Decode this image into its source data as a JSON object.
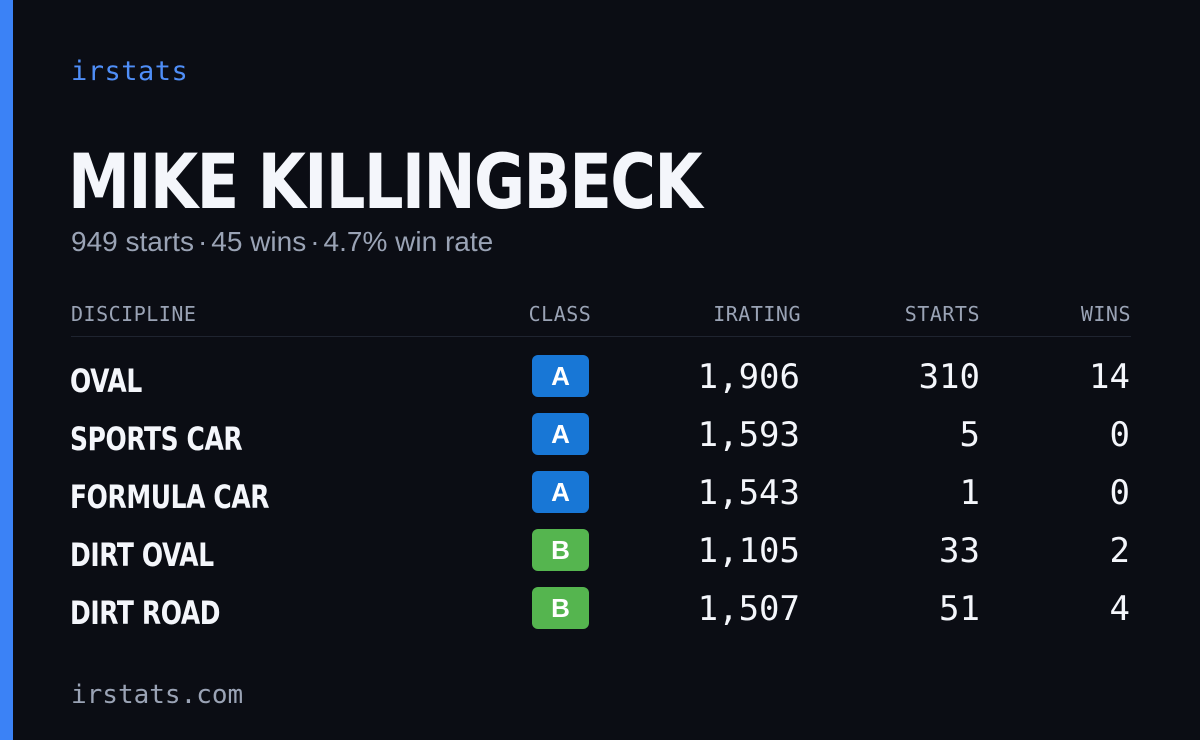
{
  "brand": "irstats",
  "driver": {
    "name": "MIKE KILLINGBECK",
    "starts_text": "949 starts",
    "wins_text": "45 wins",
    "win_rate_text": "4.7% win rate",
    "separator": "·"
  },
  "table": {
    "headers": {
      "discipline": "DISCIPLINE",
      "class": "CLASS",
      "irating": "IRATING",
      "starts": "STARTS",
      "wins": "WINS"
    },
    "rows": [
      {
        "discipline": "OVAL",
        "class": "A",
        "class_color": "#1877d6",
        "irating": "1,906",
        "starts": "310",
        "wins": "14"
      },
      {
        "discipline": "SPORTS CAR",
        "class": "A",
        "class_color": "#1877d6",
        "irating": "1,593",
        "starts": "5",
        "wins": "0"
      },
      {
        "discipline": "FORMULA CAR",
        "class": "A",
        "class_color": "#1877d6",
        "irating": "1,543",
        "starts": "1",
        "wins": "0"
      },
      {
        "discipline": "DIRT OVAL",
        "class": "B",
        "class_color": "#55b54f",
        "irating": "1,105",
        "starts": "33",
        "wins": "2"
      },
      {
        "discipline": "DIRT ROAD",
        "class": "B",
        "class_color": "#55b54f",
        "irating": "1,507",
        "starts": "51",
        "wins": "4"
      }
    ]
  },
  "footer": "irstats.com",
  "colors": {
    "accent": "#3b82f6",
    "background": "#0b0d14",
    "muted_text": "#9aa3b5"
  }
}
